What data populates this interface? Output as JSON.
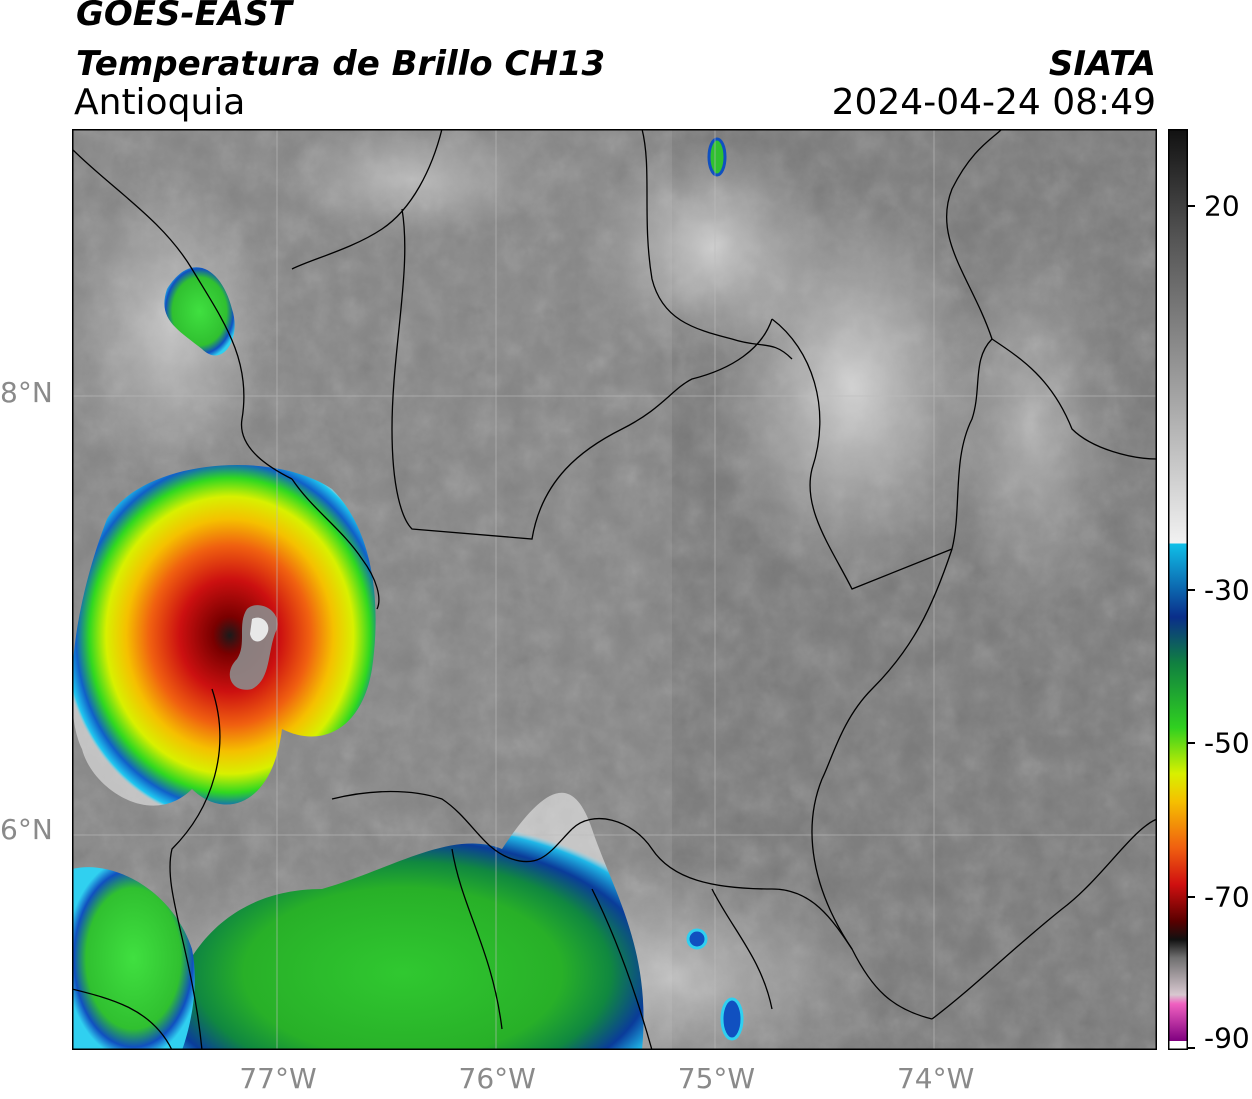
{
  "header": {
    "title": "GOES-EAST",
    "subtitle": "Temperatura de Brillo CH13",
    "region": "Antioquia",
    "organization": "SIATA",
    "datetime": "2024-04-24 08:49"
  },
  "axes": {
    "lat_labels": [
      {
        "value": 8,
        "text": "8°N"
      },
      {
        "value": 6,
        "text": "6°N"
      }
    ],
    "lon_labels": [
      {
        "value": -77,
        "text": "77°W"
      },
      {
        "value": -76,
        "text": "76°W"
      },
      {
        "value": -75,
        "text": "75°W"
      },
      {
        "value": -74,
        "text": "74°W"
      }
    ]
  },
  "colorbar": {
    "ticks": [
      {
        "value": 20,
        "text": "20"
      },
      {
        "value": -30,
        "text": "-30"
      },
      {
        "value": -50,
        "text": "-50"
      },
      {
        "value": -70,
        "text": "-70"
      },
      {
        "value": -90,
        "text": "-90"
      }
    ],
    "range": [
      -90,
      30
    ]
  },
  "colors": {
    "border": "#000000",
    "grid": "#bdbdbd",
    "label_gray": "#8a8a8a"
  }
}
